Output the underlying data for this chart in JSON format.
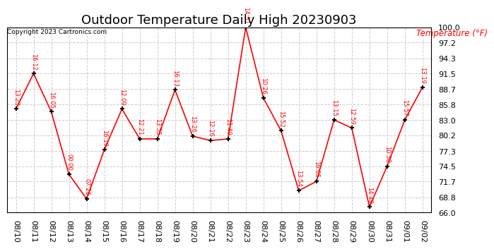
{
  "title": "Outdoor Temperature Daily High 20230903",
  "copyright": "Copyright 2023 Cartronics.com",
  "ylabel": "Temperature (°F)",
  "ylabel_color": "red",
  "background_color": "white",
  "line_color": "red",
  "marker_color": "black",
  "dates": [
    "08/10",
    "08/11",
    "08/12",
    "08/13",
    "08/14",
    "08/15",
    "08/16",
    "08/17",
    "08/18",
    "08/19",
    "08/20",
    "08/21",
    "08/22",
    "08/23",
    "08/24",
    "08/25",
    "08/26",
    "08/27",
    "08/28",
    "08/29",
    "08/30",
    "08/31",
    "09/01",
    "09/02"
  ],
  "values": [
    85.0,
    91.5,
    84.5,
    73.0,
    68.5,
    77.5,
    85.0,
    79.5,
    79.5,
    88.5,
    80.0,
    79.2,
    79.5,
    100.0,
    87.0,
    81.0,
    70.0,
    71.7,
    83.0,
    81.5,
    67.0,
    74.5,
    83.0,
    89.0
  ],
  "times": [
    "13:23",
    "16:12",
    "16:05",
    "00:00",
    "07:26",
    "16:19",
    "12:09",
    "12:21",
    "13:55",
    "16:13",
    "13:26",
    "12:26",
    "11:40",
    "14:51",
    "10:26",
    "15:52",
    "13:54",
    "16:05",
    "13:15",
    "12:59",
    "14:49",
    "10:58",
    "15:57",
    "13:19"
  ],
  "ylim": [
    66.0,
    100.0
  ],
  "yticks": [
    66.0,
    68.8,
    71.7,
    74.5,
    77.3,
    80.2,
    83.0,
    85.8,
    88.7,
    91.5,
    94.3,
    97.2,
    100.0
  ],
  "ytick_labels": [
    "66.0",
    "68.8",
    "71.7",
    "74.5",
    "77.3",
    "80.2",
    "83.0",
    "85.8",
    "88.7",
    "91.5",
    "94.3",
    "97.2",
    "100.0"
  ],
  "grid_color": "#cccccc",
  "title_fontsize": 13,
  "tick_fontsize": 8,
  "label_fontsize": 8.5
}
